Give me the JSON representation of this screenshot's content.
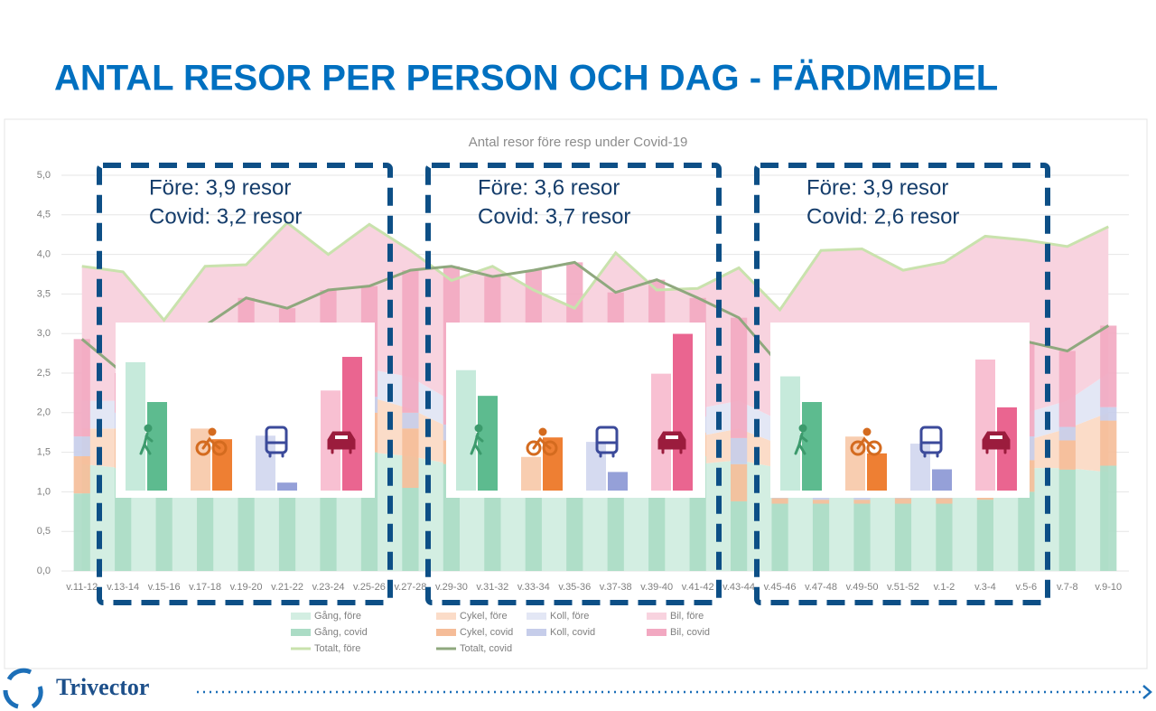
{
  "header": {
    "title": "ANTAL RESOR PER PERSON OCH DAG - FÄRDMEDEL"
  },
  "footer": {
    "logo": "Trivector"
  },
  "chart_data": [
    {
      "type": "combo",
      "title": "Antal resor före resp under Covid-19",
      "categories": [
        "v.11-12",
        "v.13-14",
        "v.15-16",
        "v.17-18",
        "v.19-20",
        "v.21-22",
        "v.23-24",
        "v.25-26",
        "v.27-28",
        "v.29-30",
        "v.31-32",
        "v.33-34",
        "v.35-36",
        "v.37-38",
        "v.39-40",
        "v.41-42",
        "v.43-44",
        "v.45-46",
        "v.47-48",
        "v.49-50",
        "v.51-52",
        "v.1-2",
        "v.3-4",
        "v.5-6",
        "v.7-8",
        "v.9-10"
      ],
      "ylim": [
        0,
        5
      ],
      "yticks": [
        {
          "value": 0,
          "label": "0,0"
        },
        {
          "value": 0.5,
          "label": "0,5"
        },
        {
          "value": 1,
          "label": "1,0"
        },
        {
          "value": 1.5,
          "label": "1,5"
        },
        {
          "value": 2,
          "label": "2,0"
        },
        {
          "value": 2.5,
          "label": "2,5"
        },
        {
          "value": 3,
          "label": "3,0"
        },
        {
          "value": 3.5,
          "label": "3,5"
        },
        {
          "value": 4,
          "label": "4,0"
        },
        {
          "value": 4.5,
          "label": "4,5"
        },
        {
          "value": 5,
          "label": "5,0"
        }
      ],
      "grid": true,
      "legend": "bottom",
      "series": [
        {
          "name": "Gång, före",
          "type": "area",
          "color": "#d3eee2",
          "values": [
            1.35,
            1.3,
            1.3,
            1.4,
            1.4,
            1.5,
            1.45,
            1.5,
            1.45,
            1.35,
            1.4,
            1.35,
            1.3,
            1.45,
            1.35,
            1.35,
            1.4,
            1.3,
            1.4,
            1.4,
            1.3,
            1.3,
            1.35,
            1.3,
            1.3,
            1.25
          ]
        },
        {
          "name": "Cykel, före",
          "type": "area",
          "color": "#fbdcc8",
          "values": [
            0.45,
            0.5,
            0.5,
            0.6,
            0.7,
            0.75,
            0.7,
            0.7,
            0.6,
            0.45,
            0.45,
            0.4,
            0.35,
            0.45,
            0.35,
            0.35,
            0.4,
            0.3,
            0.3,
            0.3,
            0.25,
            0.25,
            0.25,
            0.35,
            0.5,
            0.75
          ]
        },
        {
          "name": "Koll, före",
          "type": "area",
          "color": "#e3e7f5",
          "values": [
            0.35,
            0.35,
            0.3,
            0.3,
            0.35,
            0.35,
            0.3,
            0.35,
            0.4,
            0.35,
            0.35,
            0.35,
            0.3,
            0.35,
            0.35,
            0.35,
            0.35,
            0.3,
            0.35,
            0.35,
            0.3,
            0.35,
            0.35,
            0.35,
            0.35,
            0.5
          ]
        },
        {
          "name": "Bil, före",
          "type": "area",
          "color": "#f8d3df",
          "values": [
            1.7,
            1.63,
            1.07,
            1.55,
            1.42,
            1.8,
            1.55,
            1.83,
            1.6,
            1.52,
            1.65,
            1.45,
            1.37,
            1.77,
            1.5,
            1.52,
            1.68,
            1.4,
            2.0,
            2.02,
            1.95,
            2.0,
            2.28,
            2.18,
            1.95,
            1.85
          ]
        },
        {
          "name": "Gång, covid",
          "type": "bar",
          "color": "#abdcc5",
          "values": [
            0.98,
            1.3,
            1.2,
            1.3,
            1.3,
            1.4,
            1.45,
            1.5,
            1.05,
            1.35,
            1.4,
            1.45,
            1.5,
            1.5,
            1.4,
            1.45,
            0.88,
            0.85,
            0.85,
            0.85,
            0.85,
            0.85,
            0.9,
            1.0,
            1.28,
            1.33
          ]
        },
        {
          "name": "Cykel, covid",
          "type": "bar",
          "color": "#f5bc98",
          "values": [
            0.47,
            0.5,
            0.5,
            0.55,
            0.6,
            0.6,
            0.55,
            0.5,
            0.75,
            0.3,
            0.35,
            0.3,
            0.3,
            0.3,
            0.25,
            0.3,
            0.47,
            0.07,
            0.05,
            0.05,
            0.07,
            0.07,
            0.05,
            0.4,
            0.37,
            0.57
          ]
        },
        {
          "name": "Koll, covid",
          "type": "bar",
          "color": "#c6cdea",
          "values": [
            0.25,
            0.2,
            0.2,
            0.2,
            0.2,
            0.2,
            0.2,
            0.2,
            0.2,
            0.2,
            0.2,
            0.2,
            0.2,
            0.2,
            0.2,
            0.2,
            0.33,
            0.25,
            0.25,
            0.25,
            0.25,
            0.25,
            0.25,
            0.3,
            0.17,
            0.17
          ]
        },
        {
          "name": "Bil, covid",
          "type": "bar",
          "color": "#f2a8c1",
          "values": [
            1.23,
            0.5,
            1.1,
            1.05,
            1.35,
            1.12,
            1.35,
            1.4,
            1.8,
            2.0,
            1.77,
            1.85,
            1.9,
            1.52,
            1.83,
            1.5,
            1.52,
            1.43,
            1.35,
            1.35,
            1.33,
            1.33,
            1.4,
            1.2,
            0.96,
            1.03
          ]
        },
        {
          "name": "Totalt, före",
          "type": "line",
          "color": "#c9e2ad",
          "values": [
            3.85,
            3.78,
            3.17,
            3.85,
            3.87,
            4.4,
            4.0,
            4.38,
            4.05,
            3.67,
            3.85,
            3.55,
            3.32,
            4.02,
            3.55,
            3.57,
            3.83,
            3.3,
            4.05,
            4.07,
            3.8,
            3.9,
            4.23,
            4.18,
            4.1,
            4.35
          ]
        },
        {
          "name": "Totalt, covid",
          "type": "line",
          "color": "#8fa87e",
          "values": [
            2.93,
            2.5,
            3.0,
            3.1,
            3.45,
            3.32,
            3.55,
            3.6,
            3.8,
            3.85,
            3.72,
            3.8,
            3.9,
            3.52,
            3.68,
            3.45,
            3.2,
            2.6,
            2.5,
            2.5,
            2.5,
            2.5,
            2.6,
            2.9,
            2.78,
            3.1
          ]
        }
      ]
    },
    {
      "type": "bar",
      "annotations": [
        "Före: 3,9 resor",
        "Covid: 3,2 resor"
      ],
      "values": [
        1.45,
        1.0,
        0.7,
        0.58,
        0.62,
        0.09,
        1.13,
        1.51
      ],
      "colors": [
        "#c6eadb",
        "#5dbb8f",
        "#f8cdb0",
        "#ee7f33",
        "#d5daf0",
        "#95a0d8",
        "#f8c0d2",
        "#ea6590"
      ]
    },
    {
      "type": "bar",
      "annotations": [
        "Före: 3,6 resor",
        "Covid: 3,7 resor"
      ],
      "values": [
        1.36,
        1.07,
        0.38,
        0.6,
        0.55,
        0.21,
        1.32,
        1.77
      ],
      "colors": [
        "#c6eadb",
        "#5dbb8f",
        "#f8cdb0",
        "#ee7f33",
        "#d5daf0",
        "#95a0d8",
        "#f8c0d2",
        "#ea6590"
      ]
    },
    {
      "type": "bar",
      "annotations": [
        "Före: 3,9 resor",
        "Covid: 2,6 resor"
      ],
      "values": [
        1.29,
        1.0,
        0.61,
        0.42,
        0.53,
        0.24,
        1.48,
        0.94
      ],
      "colors": [
        "#c6eadb",
        "#5dbb8f",
        "#f8cdb0",
        "#ee7f33",
        "#d5daf0",
        "#95a0d8",
        "#f8c0d2",
        "#ea6590"
      ]
    }
  ]
}
